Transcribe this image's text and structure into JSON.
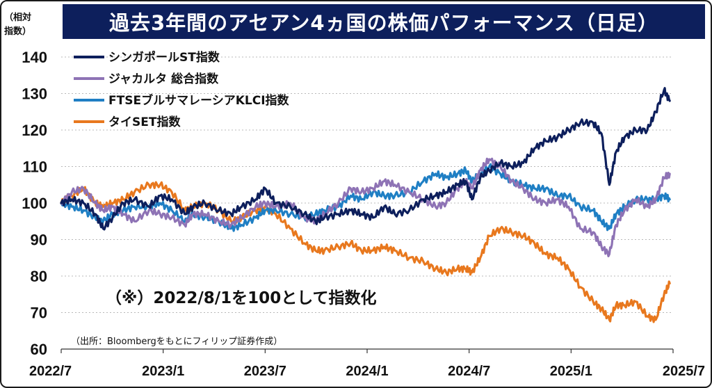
{
  "header": {
    "title": "過去3年間のアセアン4ヵ国の株価パフォーマンス（日足）",
    "y_unit": "（相対\n指数）"
  },
  "note": "（※）2022/8/1を100として指数化",
  "source": "（出所：Bloombergをもとにフィリップ証券作成）",
  "colors": {
    "singapore": "#0d1f5c",
    "jakarta": "#8e73b5",
    "klci": "#1f7fc4",
    "thai": "#e8781e",
    "grid": "#b8b8b8"
  },
  "chart_data": {
    "type": "line",
    "title": "過去3年間のアセアン4ヵ国の株価パフォーマンス（日足）",
    "ylabel": "（相対指数）",
    "xlabel": "",
    "ylim": [
      60,
      140
    ],
    "yticks": [
      60,
      70,
      80,
      90,
      100,
      110,
      120,
      130,
      140
    ],
    "xlim": [
      "2022/8",
      "2025/7"
    ],
    "xticks": [
      "2022/7",
      "2023/1",
      "2023/7",
      "2024/1",
      "2024/7",
      "2025/1",
      "2025/7"
    ],
    "grid": "horizontal dotted",
    "legend_position": "top-left",
    "series": [
      {
        "name": "シンガポールST指数",
        "color": "#0d1f5c",
        "points": [
          [
            "2022-08-01",
            100
          ],
          [
            "2022-08-20",
            101
          ],
          [
            "2022-09-10",
            100
          ],
          [
            "2022-10-01",
            97
          ],
          [
            "2022-10-15",
            93
          ],
          [
            "2022-11-01",
            96
          ],
          [
            "2022-11-20",
            100
          ],
          [
            "2022-12-10",
            101
          ],
          [
            "2023-01-05",
            99
          ],
          [
            "2023-01-25",
            102
          ],
          [
            "2023-02-15",
            101
          ],
          [
            "2023-03-10",
            97
          ],
          [
            "2023-03-25",
            99
          ],
          [
            "2023-04-15",
            100
          ],
          [
            "2023-05-10",
            98
          ],
          [
            "2023-06-01",
            97
          ],
          [
            "2023-06-20",
            99
          ],
          [
            "2023-07-15",
            101
          ],
          [
            "2023-08-01",
            104
          ],
          [
            "2023-08-20",
            100
          ],
          [
            "2023-09-15",
            99
          ],
          [
            "2023-10-10",
            97
          ],
          [
            "2023-10-30",
            95
          ],
          [
            "2023-11-15",
            96
          ],
          [
            "2023-12-10",
            97
          ],
          [
            "2024-01-01",
            98
          ],
          [
            "2024-01-20",
            97
          ],
          [
            "2024-02-10",
            96
          ],
          [
            "2024-03-01",
            99
          ],
          [
            "2024-03-20",
            97
          ],
          [
            "2024-04-15",
            98
          ],
          [
            "2024-05-10",
            101
          ],
          [
            "2024-06-01",
            102
          ],
          [
            "2024-06-20",
            103
          ],
          [
            "2024-07-10",
            105
          ],
          [
            "2024-07-25",
            106
          ],
          [
            "2024-08-05",
            101
          ],
          [
            "2024-08-20",
            107
          ],
          [
            "2024-09-05",
            109
          ],
          [
            "2024-09-25",
            111
          ],
          [
            "2024-10-15",
            110
          ],
          [
            "2024-11-05",
            111
          ],
          [
            "2024-11-25",
            115
          ],
          [
            "2024-12-15",
            117
          ],
          [
            "2025-01-05",
            118
          ],
          [
            "2025-01-25",
            120
          ],
          [
            "2025-02-15",
            122
          ],
          [
            "2025-03-10",
            122
          ],
          [
            "2025-03-25",
            119
          ],
          [
            "2025-04-08",
            105
          ],
          [
            "2025-04-20",
            114
          ],
          [
            "2025-05-05",
            118
          ],
          [
            "2025-05-25",
            120
          ],
          [
            "2025-06-15",
            120
          ],
          [
            "2025-06-30",
            125
          ],
          [
            "2025-07-15",
            131
          ],
          [
            "2025-07-25",
            128
          ]
        ]
      },
      {
        "name": "ジャカルタ 総合指数",
        "color": "#8e73b5",
        "points": [
          [
            "2022-08-01",
            100
          ],
          [
            "2022-08-20",
            103
          ],
          [
            "2022-09-10",
            104
          ],
          [
            "2022-10-01",
            100
          ],
          [
            "2022-10-15",
            98
          ],
          [
            "2022-11-01",
            99
          ],
          [
            "2022-11-20",
            97
          ],
          [
            "2022-12-10",
            95
          ],
          [
            "2023-01-05",
            98
          ],
          [
            "2023-01-25",
            97
          ],
          [
            "2023-02-15",
            96
          ],
          [
            "2023-03-10",
            94
          ],
          [
            "2023-03-25",
            97
          ],
          [
            "2023-04-15",
            97
          ],
          [
            "2023-05-10",
            95
          ],
          [
            "2023-06-01",
            94
          ],
          [
            "2023-06-20",
            96
          ],
          [
            "2023-07-15",
            99
          ],
          [
            "2023-08-01",
            100
          ],
          [
            "2023-08-20",
            99
          ],
          [
            "2023-09-15",
            100
          ],
          [
            "2023-10-10",
            96
          ],
          [
            "2023-10-30",
            95
          ],
          [
            "2023-11-15",
            97
          ],
          [
            "2023-12-10",
            100
          ],
          [
            "2024-01-01",
            104
          ],
          [
            "2024-01-20",
            103
          ],
          [
            "2024-02-10",
            104
          ],
          [
            "2024-03-01",
            106
          ],
          [
            "2024-03-20",
            105
          ],
          [
            "2024-04-15",
            103
          ],
          [
            "2024-05-10",
            101
          ],
          [
            "2024-06-01",
            99
          ],
          [
            "2024-06-20",
            100
          ],
          [
            "2024-07-10",
            104
          ],
          [
            "2024-07-25",
            106
          ],
          [
            "2024-08-05",
            104
          ],
          [
            "2024-08-20",
            109
          ],
          [
            "2024-09-05",
            112
          ],
          [
            "2024-09-25",
            110
          ],
          [
            "2024-10-15",
            106
          ],
          [
            "2024-11-05",
            104
          ],
          [
            "2024-11-25",
            101
          ],
          [
            "2024-12-15",
            100
          ],
          [
            "2025-01-05",
            101
          ],
          [
            "2025-01-25",
            99
          ],
          [
            "2025-02-15",
            93
          ],
          [
            "2025-03-10",
            92
          ],
          [
            "2025-03-25",
            88
          ],
          [
            "2025-04-08",
            86
          ],
          [
            "2025-04-20",
            94
          ],
          [
            "2025-05-05",
            98
          ],
          [
            "2025-05-25",
            101
          ],
          [
            "2025-06-15",
            99
          ],
          [
            "2025-06-30",
            101
          ],
          [
            "2025-07-15",
            107
          ],
          [
            "2025-07-25",
            108
          ]
        ]
      },
      {
        "name": "FTSEブルサマレーシアKLCI指数",
        "color": "#1f7fc4",
        "points": [
          [
            "2022-08-01",
            100
          ],
          [
            "2022-08-20",
            99
          ],
          [
            "2022-09-10",
            98
          ],
          [
            "2022-10-01",
            96
          ],
          [
            "2022-10-15",
            95
          ],
          [
            "2022-11-01",
            97
          ],
          [
            "2022-11-20",
            98
          ],
          [
            "2022-12-10",
            99
          ],
          [
            "2023-01-05",
            99
          ],
          [
            "2023-01-25",
            100
          ],
          [
            "2023-02-15",
            98
          ],
          [
            "2023-03-10",
            95
          ],
          [
            "2023-03-25",
            97
          ],
          [
            "2023-04-15",
            96
          ],
          [
            "2023-05-10",
            95
          ],
          [
            "2023-06-01",
            93
          ],
          [
            "2023-06-20",
            94
          ],
          [
            "2023-07-15",
            96
          ],
          [
            "2023-08-01",
            98
          ],
          [
            "2023-08-20",
            98
          ],
          [
            "2023-09-15",
            97
          ],
          [
            "2023-10-10",
            96
          ],
          [
            "2023-10-30",
            97
          ],
          [
            "2023-11-15",
            98
          ],
          [
            "2023-12-10",
            99
          ],
          [
            "2024-01-01",
            102
          ],
          [
            "2024-01-20",
            101
          ],
          [
            "2024-02-10",
            103
          ],
          [
            "2024-03-01",
            102
          ],
          [
            "2024-03-20",
            102
          ],
          [
            "2024-04-15",
            103
          ],
          [
            "2024-05-10",
            106
          ],
          [
            "2024-06-01",
            108
          ],
          [
            "2024-06-20",
            107
          ],
          [
            "2024-07-10",
            108
          ],
          [
            "2024-07-25",
            109
          ],
          [
            "2024-08-05",
            106
          ],
          [
            "2024-08-20",
            108
          ],
          [
            "2024-09-05",
            110
          ],
          [
            "2024-09-25",
            108
          ],
          [
            "2024-10-15",
            106
          ],
          [
            "2024-11-05",
            105
          ],
          [
            "2024-11-25",
            104
          ],
          [
            "2024-12-15",
            104
          ],
          [
            "2025-01-05",
            102
          ],
          [
            "2025-01-25",
            102
          ],
          [
            "2025-02-15",
            99
          ],
          [
            "2025-03-10",
            98
          ],
          [
            "2025-03-25",
            95
          ],
          [
            "2025-04-08",
            93
          ],
          [
            "2025-04-20",
            97
          ],
          [
            "2025-05-05",
            99
          ],
          [
            "2025-05-25",
            101
          ],
          [
            "2025-06-15",
            101
          ],
          [
            "2025-06-30",
            101
          ],
          [
            "2025-07-15",
            102
          ],
          [
            "2025-07-25",
            101
          ]
        ]
      },
      {
        "name": "タイSET指数",
        "color": "#e8781e",
        "points": [
          [
            "2022-08-01",
            100
          ],
          [
            "2022-08-20",
            102
          ],
          [
            "2022-09-10",
            104
          ],
          [
            "2022-10-01",
            100
          ],
          [
            "2022-10-15",
            99
          ],
          [
            "2022-11-01",
            100
          ],
          [
            "2022-11-20",
            101
          ],
          [
            "2022-12-10",
            103
          ],
          [
            "2023-01-05",
            105
          ],
          [
            "2023-01-25",
            105
          ],
          [
            "2023-02-15",
            103
          ],
          [
            "2023-03-10",
            98
          ],
          [
            "2023-03-25",
            99
          ],
          [
            "2023-04-15",
            100
          ],
          [
            "2023-05-10",
            98
          ],
          [
            "2023-06-01",
            95
          ],
          [
            "2023-06-20",
            96
          ],
          [
            "2023-07-15",
            98
          ],
          [
            "2023-08-01",
            99
          ],
          [
            "2023-08-20",
            97
          ],
          [
            "2023-09-15",
            93
          ],
          [
            "2023-10-10",
            89
          ],
          [
            "2023-10-30",
            87
          ],
          [
            "2023-11-15",
            87
          ],
          [
            "2023-12-10",
            88
          ],
          [
            "2024-01-01",
            89
          ],
          [
            "2024-01-20",
            87
          ],
          [
            "2024-02-10",
            87
          ],
          [
            "2024-03-01",
            88
          ],
          [
            "2024-03-20",
            87
          ],
          [
            "2024-04-15",
            85
          ],
          [
            "2024-05-10",
            84
          ],
          [
            "2024-06-01",
            82
          ],
          [
            "2024-06-20",
            81
          ],
          [
            "2024-07-10",
            82
          ],
          [
            "2024-07-25",
            82
          ],
          [
            "2024-08-05",
            81
          ],
          [
            "2024-08-20",
            85
          ],
          [
            "2024-09-05",
            91
          ],
          [
            "2024-09-25",
            93
          ],
          [
            "2024-10-15",
            92
          ],
          [
            "2024-11-05",
            91
          ],
          [
            "2024-11-25",
            89
          ],
          [
            "2024-12-15",
            86
          ],
          [
            "2025-01-05",
            85
          ],
          [
            "2025-01-25",
            82
          ],
          [
            "2025-02-15",
            77
          ],
          [
            "2025-03-10",
            73
          ],
          [
            "2025-03-25",
            71
          ],
          [
            "2025-04-08",
            68
          ],
          [
            "2025-04-20",
            72
          ],
          [
            "2025-05-05",
            72
          ],
          [
            "2025-05-25",
            73
          ],
          [
            "2025-06-15",
            69
          ],
          [
            "2025-06-30",
            68
          ],
          [
            "2025-07-15",
            75
          ],
          [
            "2025-07-25",
            78
          ]
        ]
      }
    ]
  }
}
